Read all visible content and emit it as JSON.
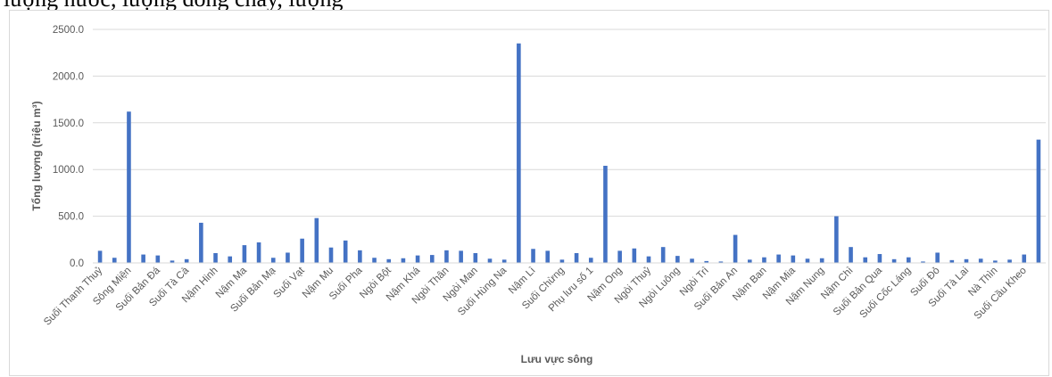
{
  "header_text": "lượng nước, lượng dòng chảy, lượng",
  "chart_data": {
    "type": "bar",
    "title": "",
    "xlabel": "Lưu vực sông",
    "ylabel": "Tổng lượng (triệu m³)",
    "ylim": [
      0,
      2500
    ],
    "yticks": [
      "0.0",
      "500.0",
      "1000.0",
      "1500.0",
      "2000.0",
      "2500.0"
    ],
    "grid": true,
    "legend": "none",
    "bar_color": "#4472c4",
    "tick_labels": [
      "Suối Thanh Thuỷ",
      "Sông Miện",
      "Suối Bản Đá",
      "Suối Tà Cà",
      "Nậm Hinh",
      "Nậm Ma",
      "Suối Bản Mạ",
      "Suối Vạt",
      "Nậm Mu",
      "Suối Pha",
      "Ngòi Bột",
      "Nậm Khá",
      "Ngòi Thân",
      "Ngòi Man",
      "Suối Hùng Na",
      "Nậm Lì",
      "Suối Chừng",
      "Phụ lưu số 1",
      "Nậm Ong",
      "Ngòi Thuỷ",
      "Ngòi Luông",
      "Ngòi Trì",
      "Suối Bản An",
      "Nậm Ban",
      "Nậm Mia",
      "Nậm Nung",
      "Nậm Chì",
      "Suối Bản Qua",
      "Suối Cốc Láng",
      "Suối Đỏ",
      "Suối Tà Lai",
      "Nà Thìn",
      "Suối Cầu Kheo"
    ],
    "values": [
      130,
      55,
      1620,
      90,
      80,
      25,
      40,
      430,
      105,
      70,
      190,
      220,
      55,
      110,
      260,
      480,
      165,
      240,
      135,
      55,
      40,
      50,
      80,
      85,
      135,
      130,
      105,
      45,
      35,
      2350,
      150,
      130,
      35,
      105,
      55,
      1040,
      130,
      155,
      70,
      170,
      75,
      45,
      20,
      15,
      300,
      35,
      60,
      90,
      80,
      45,
      50,
      500,
      170,
      60,
      95,
      40,
      60,
      15,
      110,
      30,
      40,
      45,
      25,
      35,
      90,
      1320
    ]
  }
}
